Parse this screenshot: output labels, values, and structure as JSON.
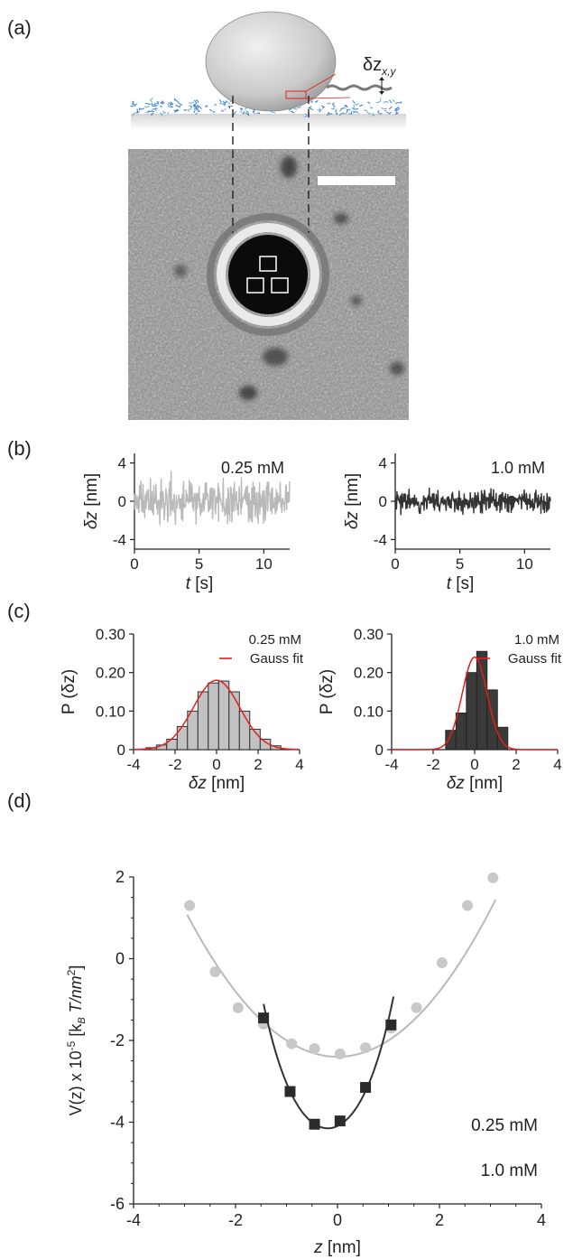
{
  "panels": {
    "a": {
      "label": "(a)",
      "annotation_symbol": "δz",
      "annotation_subscript": "x,y"
    },
    "b": {
      "label": "(b)"
    },
    "c": {
      "label": "(c)"
    },
    "d": {
      "label": "(d)"
    }
  },
  "colors": {
    "light_series": "#b9b9b9",
    "dark_series": "#333333",
    "fit": "#e3201b",
    "axis": "#231f20"
  },
  "chart_data": [
    {
      "id": "b-left",
      "type": "line",
      "condition": "0.25 mM",
      "xlabel_var": "t",
      "xlabel_unit": " [s]",
      "ylabel_var": "δz",
      "ylabel_unit": "  [nm]",
      "xlim": [
        0,
        12
      ],
      "ylim": [
        -5,
        5
      ],
      "xticks": [
        0,
        5,
        10
      ],
      "yticks": [
        -4,
        0,
        4
      ],
      "series": [
        {
          "name": "0.25 mM",
          "amplitude_nm": 4.2,
          "std_nm": 1.1
        }
      ]
    },
    {
      "id": "b-right",
      "type": "line",
      "condition": "1.0 mM",
      "xlabel_var": "t",
      "xlabel_unit": " [s]",
      "ylabel_var": "δz",
      "ylabel_unit": "  [nm]",
      "xlim": [
        0,
        12
      ],
      "ylim": [
        -5,
        5
      ],
      "xticks": [
        0,
        5,
        10
      ],
      "yticks": [
        -4,
        0,
        4
      ],
      "series": [
        {
          "name": "1.0 mM",
          "amplitude_nm": 1.8,
          "std_nm": 0.6
        }
      ]
    },
    {
      "id": "c-left",
      "type": "bar",
      "condition": "0.25 mM",
      "fit_label": "Gauss fit",
      "xlabel_var": "δz",
      "xlabel_unit": " [nm]",
      "ylabel": "P (δz)",
      "xlim": [
        -4,
        4
      ],
      "ylim": [
        0,
        0.3
      ],
      "xticks": [
        "-4",
        "-2",
        "0",
        "2",
        "4"
      ],
      "yticks": [
        "0",
        "0.10",
        "0.20",
        "0.30"
      ],
      "bin_edges": [
        -3.4,
        -2.9,
        -2.4,
        -1.9,
        -1.4,
        -0.9,
        -0.4,
        0.1,
        0.6,
        1.1,
        1.6,
        2.1,
        2.6,
        3.1
      ],
      "values": [
        0.005,
        0.012,
        0.027,
        0.06,
        0.1,
        0.15,
        0.173,
        0.178,
        0.15,
        0.1,
        0.053,
        0.027,
        0.01
      ],
      "gauss_fit": {
        "mean": 0.0,
        "sigma": 1.12,
        "peak": 0.18
      }
    },
    {
      "id": "c-right",
      "type": "bar",
      "condition": "1.0 mM",
      "fit_label": "Gauss fit",
      "xlabel_var": "δz",
      "xlabel_unit": " [nm]",
      "ylabel": "P (δz)",
      "xlim": [
        -4,
        4
      ],
      "ylim": [
        0,
        0.3
      ],
      "xticks": [
        "-4",
        "-2",
        "0",
        "2",
        "4"
      ],
      "yticks": [
        "0",
        "0.10",
        "0.20",
        "0.30"
      ],
      "bin_edges": [
        -1.4,
        -0.9,
        -0.4,
        0.1,
        0.6,
        1.1,
        1.6
      ],
      "values": [
        0.05,
        0.095,
        0.2,
        0.255,
        0.155,
        0.058
      ],
      "gauss_fit": {
        "mean": 0.0,
        "sigma": 0.6,
        "peak": 0.24
      }
    },
    {
      "id": "d",
      "type": "scatter",
      "ylabel_prefix": "V(z) x 10",
      "ylabel_exp": "-5",
      "ylabel_bracket": " [k",
      "ylabel_sub": "B",
      "ylabel_tail": " T/nm",
      "ylabel_sq": "2",
      "ylabel_close": "]",
      "xlabel_var": "z",
      "xlabel_unit": "  [nm]",
      "xlim": [
        -4,
        4
      ],
      "ylim": [
        -6,
        2
      ],
      "xticks": [
        -4,
        -2,
        0,
        2,
        4
      ],
      "yticks": [
        -6,
        -4,
        -2,
        0,
        2
      ],
      "series": [
        {
          "name": "0.25 mM",
          "marker": "circle",
          "x": [
            -2.9,
            -2.4,
            -1.95,
            -1.45,
            -0.9,
            -0.45,
            0.05,
            0.55,
            1.05,
            1.55,
            2.05,
            2.55,
            3.05
          ],
          "y": [
            1.3,
            -0.32,
            -1.2,
            -1.6,
            -2.08,
            -2.2,
            -2.33,
            -2.18,
            -1.7,
            -1.2,
            -0.1,
            1.3,
            1.98
          ],
          "fit": {
            "curvature": 0.4,
            "min": -2.4,
            "x_range": [
              -2.95,
              3.1
            ]
          }
        },
        {
          "name": "1.0 mM",
          "marker": "square",
          "x": [
            -1.45,
            -0.93,
            -0.45,
            0.05,
            0.55,
            1.05
          ],
          "y": [
            -1.45,
            -3.25,
            -4.05,
            -3.97,
            -3.15,
            -1.62
          ],
          "fit": {
            "curvature": 1.52,
            "offset": -0.19,
            "min": -4.15,
            "x_range": [
              -1.45,
              1.1
            ]
          }
        }
      ]
    }
  ]
}
